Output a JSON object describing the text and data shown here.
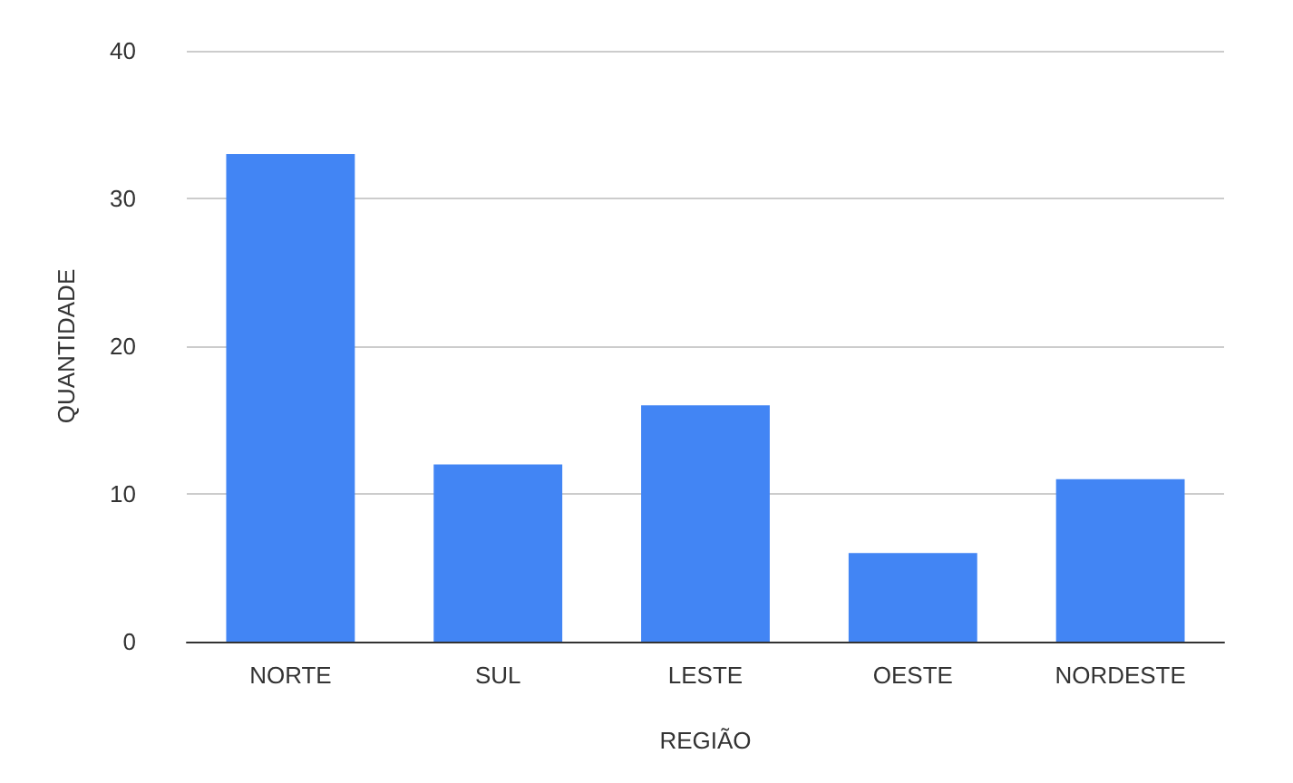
{
  "chart_data": {
    "type": "bar",
    "xlabel": "REGIÃO",
    "ylabel": "QUANTIDADE",
    "categories": [
      "NORTE",
      "SUL",
      "LESTE",
      "OESTE",
      "NORDESTE"
    ],
    "values": [
      33,
      12,
      16,
      6,
      11
    ],
    "color": "#4285f4",
    "ylim": [
      0,
      40
    ],
    "yticks": [
      0,
      10,
      20,
      30,
      40
    ],
    "grid": "y"
  }
}
